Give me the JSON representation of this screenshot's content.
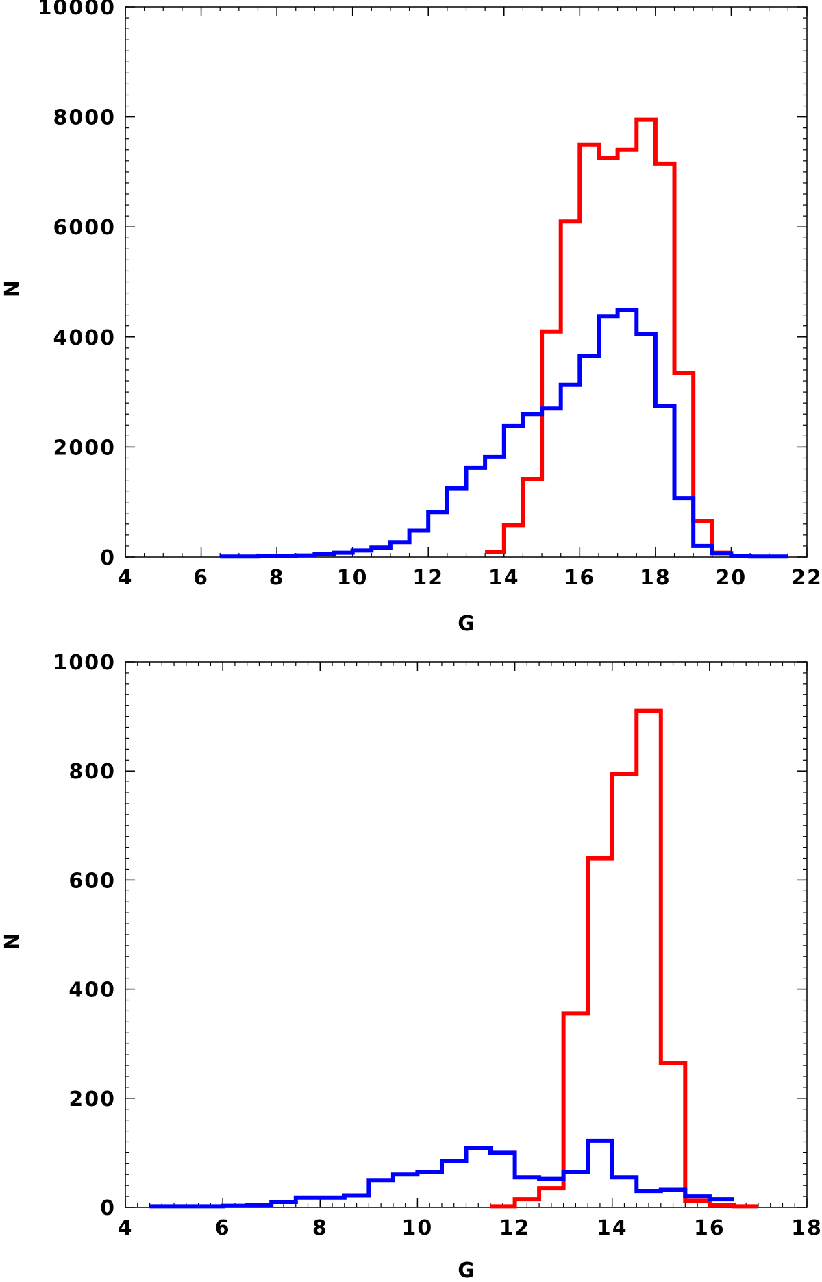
{
  "chart_data": [
    {
      "type": "histogram",
      "xlabel": "G",
      "ylabel": "N",
      "xlim": [
        4,
        22
      ],
      "ylim": [
        0,
        10000
      ],
      "xticks": [
        "4",
        "6",
        "8",
        "10",
        "12",
        "14",
        "16",
        "18",
        "20",
        "22"
      ],
      "yticks": [
        "0",
        "2000",
        "4000",
        "6000",
        "8000",
        "10000"
      ],
      "grid": false,
      "series": [
        {
          "color": "#ff0000",
          "bin_edges": [
            13.5,
            14.0,
            14.5,
            15.0,
            15.5,
            16.0,
            16.5,
            17.0,
            17.5,
            18.0,
            18.5,
            19.0,
            19.5,
            20.0
          ],
          "values": [
            100,
            580,
            1420,
            4100,
            6100,
            7500,
            7250,
            7400,
            7950,
            7150,
            3350,
            650,
            80
          ]
        },
        {
          "color": "#0000ff",
          "bin_edges": [
            6.5,
            7.0,
            7.5,
            8.0,
            8.5,
            9.0,
            9.5,
            10.0,
            10.5,
            11.0,
            11.5,
            12.0,
            12.5,
            13.0,
            13.5,
            14.0,
            14.5,
            15.0,
            15.5,
            16.0,
            16.5,
            17.0,
            17.5,
            18.0,
            18.5,
            19.0,
            19.5,
            20.0,
            20.5,
            21.0,
            21.5
          ],
          "values": [
            10,
            10,
            15,
            20,
            30,
            50,
            80,
            120,
            170,
            270,
            480,
            820,
            1250,
            1620,
            1820,
            2380,
            2600,
            2700,
            3130,
            3650,
            4380,
            4490,
            4050,
            2750,
            1070,
            200,
            70,
            20,
            10,
            10
          ]
        }
      ]
    },
    {
      "type": "histogram",
      "xlabel": "G",
      "ylabel": "N",
      "xlim": [
        4,
        18
      ],
      "ylim": [
        0,
        1000
      ],
      "xticks": [
        "4",
        "6",
        "8",
        "10",
        "12",
        "14",
        "16",
        "18"
      ],
      "yticks": [
        "0",
        "200",
        "400",
        "600",
        "800",
        "1000"
      ],
      "grid": false,
      "series": [
        {
          "color": "#ff0000",
          "bin_edges": [
            11.5,
            12.0,
            12.5,
            13.0,
            13.5,
            14.0,
            14.5,
            15.0,
            15.5,
            16.0,
            16.5,
            17.0
          ],
          "values": [
            2,
            15,
            35,
            355,
            640,
            795,
            910,
            265,
            12,
            5,
            2
          ]
        },
        {
          "color": "#0000ff",
          "bin_edges": [
            4.5,
            5.0,
            5.5,
            6.0,
            6.5,
            7.0,
            7.5,
            8.0,
            8.5,
            9.0,
            9.5,
            10.0,
            10.5,
            11.0,
            11.5,
            12.0,
            12.5,
            13.0,
            13.5,
            14.0,
            14.5,
            15.0,
            15.5,
            16.0,
            16.5
          ],
          "values": [
            2,
            2,
            2,
            3,
            5,
            10,
            18,
            18,
            22,
            50,
            60,
            65,
            85,
            108,
            100,
            55,
            52,
            65,
            122,
            55,
            30,
            32,
            20,
            15
          ]
        }
      ]
    }
  ]
}
